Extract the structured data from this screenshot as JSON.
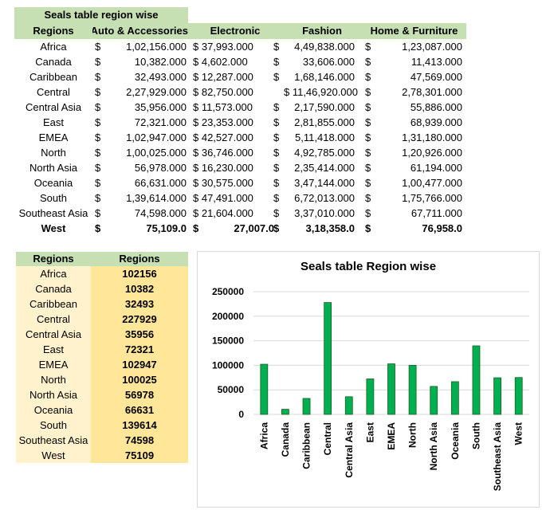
{
  "top_table": {
    "title": "Seals table region wise",
    "headers": [
      "Regions",
      "Auto & Accessories",
      "Electronic",
      "Fashion",
      "Home & Furniture"
    ],
    "rows": [
      {
        "region": "Africa",
        "auto": "1,02,156.000",
        "elec": "$ 37,993.000",
        "fashion": "4,49,838.000",
        "home": "1,23,087.000"
      },
      {
        "region": "Canada",
        "auto": "10,382.000",
        "elec": "$ 4,602.000",
        "fashion": "33,606.000",
        "home": "11,413.000"
      },
      {
        "region": "Caribbean",
        "auto": "32,493.000",
        "elec": "$ 12,287.000",
        "fashion": "1,68,146.000",
        "home": "47,569.000"
      },
      {
        "region": "Central",
        "auto": "2,27,929.000",
        "elec": "$ 82,750.000",
        "fashion": "$ 11,46,920.000",
        "home": "2,78,301.000"
      },
      {
        "region": "Central Asia",
        "auto": "35,956.000",
        "elec": "$ 11,573.000",
        "fashion": "2,17,590.000",
        "home": "55,886.000"
      },
      {
        "region": "East",
        "auto": "72,321.000",
        "elec": "$ 23,353.000",
        "fashion": "2,81,855.000",
        "home": "68,939.000"
      },
      {
        "region": "EMEA",
        "auto": "1,02,947.000",
        "elec": "$ 42,527.000",
        "fashion": "5,11,418.000",
        "home": "1,31,180.000"
      },
      {
        "region": "North",
        "auto": "1,00,025.000",
        "elec": "$ 36,746.000",
        "fashion": "4,92,785.000",
        "home": "1,20,926.000"
      },
      {
        "region": "North Asia",
        "auto": "56,978.000",
        "elec": "$ 16,230.000",
        "fashion": "2,35,414.000",
        "home": "61,194.000"
      },
      {
        "region": "Oceania",
        "auto": "66,631.000",
        "elec": "$ 30,575.000",
        "fashion": "3,47,144.000",
        "home": "1,00,477.000"
      },
      {
        "region": "South",
        "auto": "1,39,614.000",
        "elec": "$ 47,491.000",
        "fashion": "6,72,013.000",
        "home": "1,75,766.000"
      },
      {
        "region": "Southeast Asia",
        "auto": "74,598.000",
        "elec": "$ 21,604.000",
        "fashion": "3,37,010.000",
        "home": "67,711.000"
      },
      {
        "region": "West",
        "auto": "75,109.0",
        "elec": "27,007.0",
        "fashion": "3,18,358.0",
        "home": "76,958.0"
      }
    ],
    "currency": "$"
  },
  "bottom_table": {
    "headers": [
      "Regions",
      "Regions"
    ],
    "rows": [
      {
        "region": "Africa",
        "value": "102156"
      },
      {
        "region": "Canada",
        "value": "10382"
      },
      {
        "region": "Caribbean",
        "value": "32493"
      },
      {
        "region": "Central",
        "value": "227929"
      },
      {
        "region": "Central Asia",
        "value": "35956"
      },
      {
        "region": "East",
        "value": "72321"
      },
      {
        "region": "EMEA",
        "value": "102947"
      },
      {
        "region": "North",
        "value": "100025"
      },
      {
        "region": "North Asia",
        "value": "56978"
      },
      {
        "region": "Oceania",
        "value": "66631"
      },
      {
        "region": "South",
        "value": "139614"
      },
      {
        "region": "Southeast Asia",
        "value": "74598"
      },
      {
        "region": "West",
        "value": "75109"
      }
    ]
  },
  "chart_data": {
    "type": "bar",
    "title": "Seals table Region wise",
    "categories": [
      "Africa",
      "Canada",
      "Caribbean",
      "Central",
      "Central Asia",
      "East",
      "EMEA",
      "North",
      "North Asia",
      "Oceania",
      "South",
      "Southeast Asia",
      "West"
    ],
    "values": [
      102156,
      10382,
      32493,
      227929,
      35956,
      72321,
      102947,
      100025,
      56978,
      66631,
      139614,
      74598,
      75109
    ],
    "ylim": [
      0,
      250000
    ],
    "yticks": [
      0,
      50000,
      100000,
      150000,
      200000,
      250000
    ],
    "ytick_labels": [
      "0",
      "50000",
      "100000",
      "150000",
      "200000",
      "250000"
    ],
    "grid": true,
    "bar_color": "#00b050",
    "legend": "none"
  },
  "colors": {
    "header_green": "#c6e0b4",
    "light_yellow": "#fff2cc",
    "gold": "#ffe699",
    "bar_green": "#00b050"
  }
}
